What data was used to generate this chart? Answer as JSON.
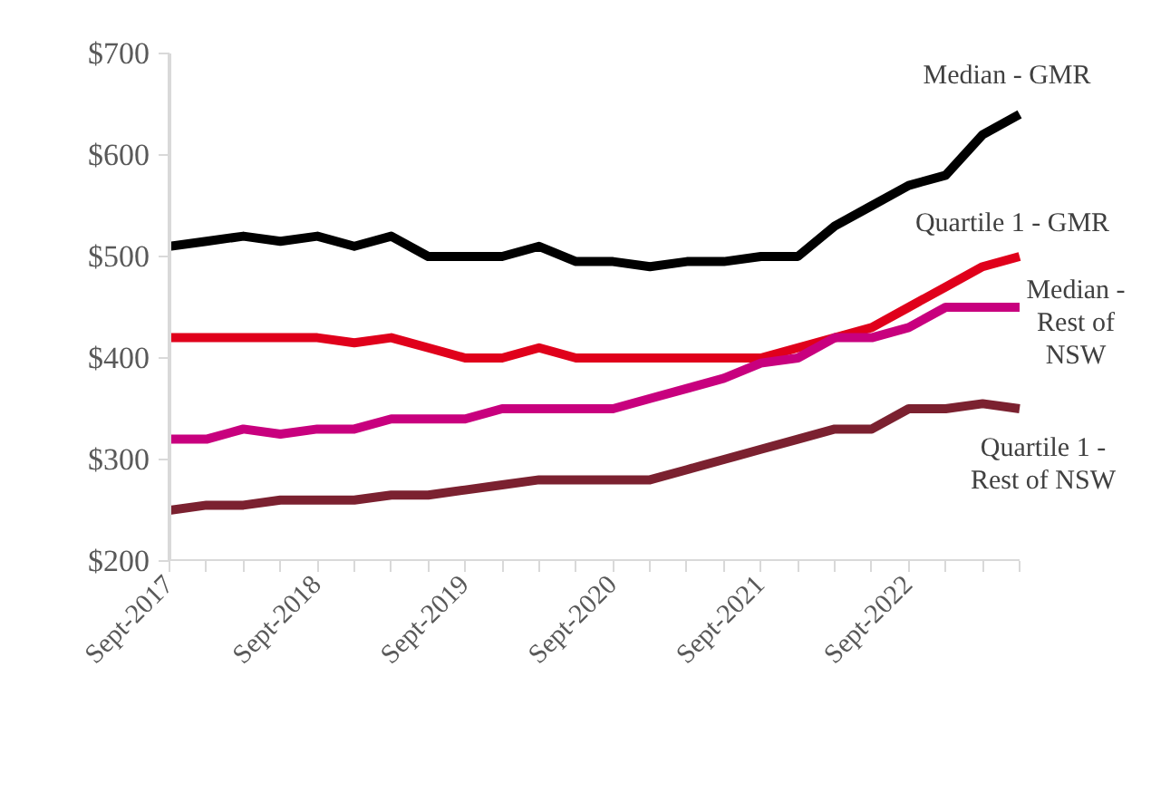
{
  "chart_data": {
    "type": "line",
    "categories": [
      "Sept-2017",
      null,
      null,
      null,
      "Sept-2018",
      null,
      null,
      null,
      "Sept-2019",
      null,
      null,
      null,
      "Sept-2020",
      null,
      null,
      null,
      "Sept-2021",
      null,
      null,
      null,
      "Sept-2022",
      null,
      null,
      null
    ],
    "ylim": [
      200,
      700
    ],
    "yticks": [
      {
        "value": 200,
        "label": "$200"
      },
      {
        "value": 300,
        "label": "$300"
      },
      {
        "value": 400,
        "label": "$400"
      },
      {
        "value": 500,
        "label": "$500"
      },
      {
        "value": 600,
        "label": "$600"
      },
      {
        "value": 700,
        "label": "$700"
      }
    ],
    "grid": false,
    "marker": "none",
    "line_style": "solid",
    "series": [
      {
        "name": "Median - GMR",
        "color": "#000000",
        "values": [
          510,
          515,
          520,
          515,
          520,
          510,
          520,
          500,
          500,
          500,
          510,
          495,
          495,
          490,
          495,
          495,
          500,
          500,
          530,
          550,
          570,
          580,
          620,
          640
        ]
      },
      {
        "name": "Quartile 1 - GMR",
        "color": "#e0001b",
        "values": [
          420,
          420,
          420,
          420,
          420,
          415,
          420,
          410,
          400,
          400,
          410,
          400,
          400,
          400,
          400,
          400,
          400,
          410,
          420,
          430,
          450,
          470,
          490,
          500
        ]
      },
      {
        "name": "Median - Rest of NSW",
        "color": "#c8007e",
        "values": [
          320,
          320,
          330,
          325,
          330,
          330,
          340,
          340,
          340,
          350,
          350,
          350,
          350,
          360,
          370,
          380,
          395,
          400,
          420,
          420,
          430,
          450,
          450,
          450
        ]
      },
      {
        "name": "Quartile 1 - Rest of NSW",
        "color": "#7b2130",
        "values": [
          250,
          255,
          255,
          260,
          260,
          260,
          265,
          265,
          270,
          275,
          280,
          280,
          280,
          280,
          290,
          300,
          310,
          320,
          330,
          330,
          350,
          350,
          355,
          350
        ]
      }
    ]
  }
}
